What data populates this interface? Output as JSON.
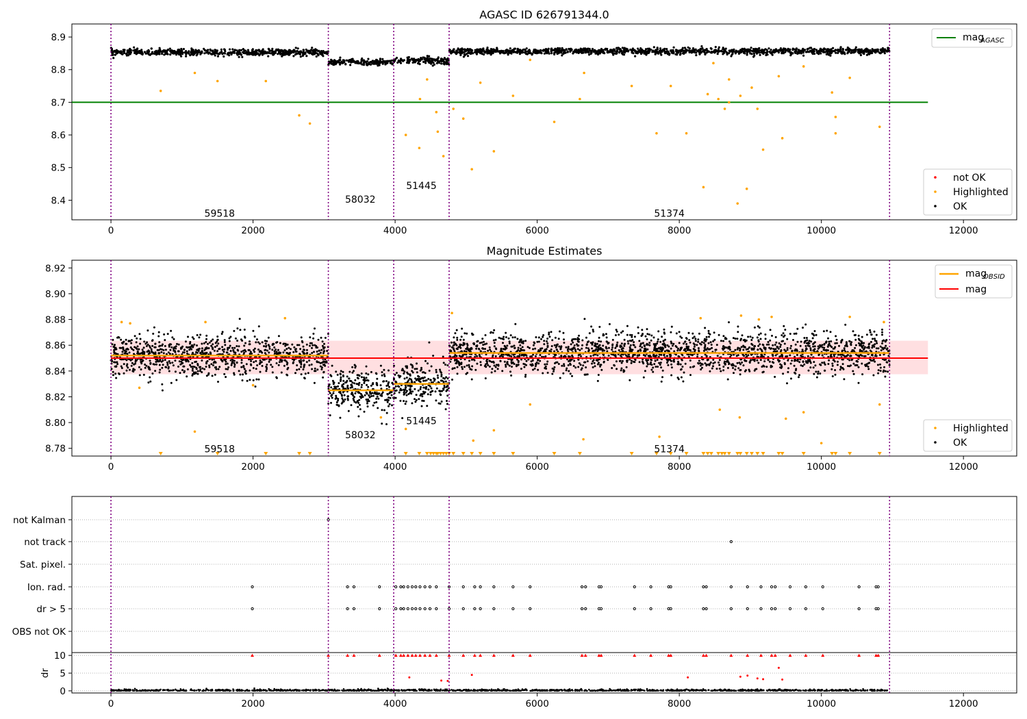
{
  "colors": {
    "ok": "#000000",
    "highlighted": "#ffa500",
    "not_ok": "#ff0000",
    "agasc_line": "#008000",
    "mean_line": "#ff0000",
    "band": "#ffc0c4",
    "obsid_line": "#ffa500",
    "boundary": "#800080",
    "grid": "#b0b0b0"
  },
  "chart_data": [
    {
      "type": "scatter",
      "title": "AGASC ID 626791344.0",
      "xlim": [
        -550,
        12750
      ],
      "ylim": [
        8.34,
        8.94
      ],
      "xticks": [
        0,
        2000,
        4000,
        6000,
        8000,
        10000,
        12000
      ],
      "xtick_labels": [
        "0",
        "2000",
        "4000",
        "6000",
        "8000",
        "10000",
        "12000"
      ],
      "yticks": [
        8.4,
        8.5,
        8.6,
        8.7,
        8.8,
        8.9
      ],
      "ytick_labels": [
        "8.4",
        "8.5",
        "8.6",
        "8.7",
        "8.8",
        "8.9"
      ],
      "hline": {
        "y": 8.7,
        "x_range": [
          0,
          11500
        ],
        "color": "#008000",
        "label": "mag",
        "label_sub": "AGASC"
      },
      "obsid_boundaries": [
        0,
        3060,
        3980,
        4760,
        10960
      ],
      "obsid_labels": [
        {
          "text": "59518",
          "x": 1530,
          "y": 8.36
        },
        {
          "text": "58032",
          "x": 3510,
          "y": 8.403
        },
        {
          "text": "51445",
          "x": 4370,
          "y": 8.445
        },
        {
          "text": "51374",
          "x": 7860,
          "y": 8.36
        }
      ],
      "ok_segments": [
        {
          "x_range": [
            0,
            3060
          ],
          "mean": 8.853,
          "spread": 0.009
        },
        {
          "x_range": [
            3060,
            3980
          ],
          "mean": 8.823,
          "spread": 0.008
        },
        {
          "x_range": [
            3980,
            4760
          ],
          "mean": 8.828,
          "spread": 0.01
        },
        {
          "x_range": [
            4760,
            10960
          ],
          "mean": 8.856,
          "spread": 0.009
        }
      ],
      "highlighted_points": [
        [
          700,
          8.735
        ],
        [
          1180,
          8.79
        ],
        [
          1500,
          8.765
        ],
        [
          2180,
          8.765
        ],
        [
          2650,
          8.66
        ],
        [
          2800,
          8.635
        ],
        [
          4150,
          8.6
        ],
        [
          4340,
          8.56
        ],
        [
          4580,
          8.67
        ],
        [
          4600,
          8.61
        ],
        [
          4680,
          8.535
        ],
        [
          4820,
          8.68
        ],
        [
          4960,
          8.65
        ],
        [
          5080,
          8.495
        ],
        [
          5200,
          8.76
        ],
        [
          5390,
          8.55
        ],
        [
          5660,
          8.72
        ],
        [
          6240,
          8.64
        ],
        [
          6600,
          8.71
        ],
        [
          6660,
          8.79
        ],
        [
          7330,
          8.75
        ],
        [
          7680,
          8.605
        ],
        [
          7880,
          8.75
        ],
        [
          8100,
          8.605
        ],
        [
          8340,
          8.44
        ],
        [
          8400,
          8.725
        ],
        [
          8550,
          8.71
        ],
        [
          8640,
          8.68
        ],
        [
          8700,
          8.7
        ],
        [
          8820,
          8.39
        ],
        [
          8860,
          8.72
        ],
        [
          8950,
          8.435
        ],
        [
          9020,
          8.745
        ],
        [
          9100,
          8.68
        ],
        [
          9180,
          8.555
        ],
        [
          9450,
          8.59
        ],
        [
          9400,
          8.78
        ],
        [
          9750,
          8.81
        ],
        [
          10150,
          8.73
        ],
        [
          10200,
          8.655
        ],
        [
          10200,
          8.605
        ],
        [
          10400,
          8.775
        ],
        [
          10820,
          8.625
        ],
        [
          4450,
          8.77
        ],
        [
          4350,
          8.71
        ],
        [
          5900,
          8.83
        ],
        [
          8480,
          8.82
        ],
        [
          8700,
          8.77
        ]
      ],
      "legend_line": [
        "mag"
      ],
      "legend_line_sub": [
        "AGASC"
      ],
      "legend_points": [
        "not OK",
        "Highlighted",
        "OK"
      ]
    },
    {
      "type": "scatter",
      "title": "Magnitude Estimates",
      "xlim": [
        -550,
        12750
      ],
      "ylim": [
        8.774,
        8.926
      ],
      "xticks": [
        0,
        2000,
        4000,
        6000,
        8000,
        10000,
        12000
      ],
      "xtick_labels": [
        "0",
        "2000",
        "4000",
        "6000",
        "8000",
        "10000",
        "12000"
      ],
      "yticks": [
        8.78,
        8.8,
        8.82,
        8.84,
        8.86,
        8.88,
        8.9,
        8.92
      ],
      "ytick_labels": [
        "8.78",
        "8.80",
        "8.82",
        "8.84",
        "8.86",
        "8.88",
        "8.90",
        "8.92"
      ],
      "mean_line": {
        "y": 8.85,
        "x_range": [
          0,
          11500
        ],
        "color": "#ff0000"
      },
      "band": {
        "y_range": [
          8.8375,
          8.8635
        ],
        "x_range": [
          0,
          11500
        ]
      },
      "obsid_means": [
        {
          "x_range": [
            0,
            3060
          ],
          "y": 8.852
        },
        {
          "x_range": [
            3060,
            3980
          ],
          "y": 8.825
        },
        {
          "x_range": [
            3980,
            4760
          ],
          "y": 8.83
        },
        {
          "x_range": [
            4760,
            10960
          ],
          "y": 8.854
        }
      ],
      "obsid_boundaries": [
        0,
        3060,
        3980,
        4760,
        10960
      ],
      "obsid_labels": [
        {
          "text": "59518",
          "x": 1530,
          "y": 8.7795
        },
        {
          "text": "58032",
          "x": 3510,
          "y": 8.7905
        },
        {
          "text": "51445",
          "x": 4370,
          "y": 8.8015
        },
        {
          "text": "51374",
          "x": 7860,
          "y": 8.7795
        }
      ],
      "highlighted_points": [
        [
          150,
          8.878
        ],
        [
          270,
          8.877
        ],
        [
          1180,
          8.793
        ],
        [
          1330,
          8.878
        ],
        [
          2450,
          8.881
        ],
        [
          3800,
          8.804
        ],
        [
          4150,
          8.795
        ],
        [
          4800,
          8.885
        ],
        [
          5100,
          8.786
        ],
        [
          5390,
          8.794
        ],
        [
          5900,
          8.814
        ],
        [
          6650,
          8.787
        ],
        [
          7720,
          8.789
        ],
        [
          8300,
          8.881
        ],
        [
          8570,
          8.81
        ],
        [
          8850,
          8.804
        ],
        [
          8870,
          8.883
        ],
        [
          9120,
          8.88
        ],
        [
          9300,
          8.882
        ],
        [
          9500,
          8.803
        ],
        [
          9750,
          8.808
        ],
        [
          10000,
          8.784
        ],
        [
          10400,
          8.882
        ],
        [
          10820,
          8.814
        ],
        [
          10880,
          8.878
        ],
        [
          400,
          8.827
        ],
        [
          2000,
          8.829
        ]
      ],
      "clipped_highlighted_x": [
        700,
        1500,
        2180,
        2650,
        2800,
        4150,
        4340,
        4450,
        4500,
        4540,
        4580,
        4600,
        4640,
        4680,
        4720,
        4760,
        4820,
        4960,
        5080,
        5200,
        5390,
        5660,
        6240,
        6600,
        7330,
        7680,
        7880,
        8100,
        8340,
        8400,
        8450,
        8550,
        8600,
        8640,
        8700,
        8820,
        8860,
        8950,
        9020,
        9100,
        9180,
        9450,
        9400,
        9750,
        10150,
        10200,
        10400,
        10820
      ],
      "legend_line": [
        "mag",
        "mag"
      ],
      "legend_line_sub": [
        "OBSID",
        ""
      ],
      "legend_points": [
        "Highlighted",
        "OK"
      ]
    },
    {
      "type": "scatter",
      "title": "",
      "xlim": [
        -550,
        12750
      ],
      "xticks": [
        0,
        2000,
        4000,
        6000,
        8000,
        10000,
        12000
      ],
      "xtick_labels": [
        "0",
        "2000",
        "4000",
        "6000",
        "8000",
        "10000",
        "12000"
      ],
      "flag_rows": [
        "not Kalman",
        "not track",
        "Sat. pixel.",
        "Ion. rad.",
        "dr > 5",
        "OBS not OK"
      ],
      "flag_points": {
        "not Kalman": [
          3060
        ],
        "not track": [
          8730
        ],
        "Sat. pixel.": [],
        "Ion. rad.": [
          1990,
          3330,
          3420,
          3780,
          4010,
          4080,
          4120,
          4180,
          4240,
          4290,
          4350,
          4420,
          4490,
          4580,
          4760,
          4960,
          5120,
          5200,
          5390,
          5660,
          5900,
          6630,
          6680,
          6870,
          6900,
          7370,
          7600,
          7850,
          7880,
          8340,
          8380,
          8730,
          8960,
          9150,
          9300,
          9350,
          9560,
          9780,
          10020,
          10530,
          10770,
          10800
        ],
        "dr > 5": [
          1990,
          3330,
          3420,
          3780,
          4010,
          4080,
          4120,
          4180,
          4240,
          4290,
          4350,
          4420,
          4490,
          4580,
          4760,
          4960,
          5120,
          5200,
          5390,
          5660,
          5900,
          6630,
          6680,
          6870,
          6900,
          7370,
          7600,
          7850,
          7880,
          8340,
          8380,
          8730,
          8960,
          9150,
          9300,
          9350,
          9560,
          9780,
          10020,
          10530,
          10770,
          10800
        ],
        "OBS not OK": []
      },
      "dr_ylim": [
        -0.6,
        10.8
      ],
      "dr_yticks": [
        0,
        5,
        10
      ],
      "dr_ytick_labels": [
        "0",
        "5",
        "10"
      ],
      "dr_ylabel": "dr",
      "dr_outliers": [
        [
          1990,
          10
        ],
        [
          3060,
          10
        ],
        [
          3330,
          10
        ],
        [
          3420,
          10
        ],
        [
          3780,
          10
        ],
        [
          4010,
          10
        ],
        [
          4080,
          10
        ],
        [
          4120,
          10
        ],
        [
          4180,
          10
        ],
        [
          4240,
          10
        ],
        [
          4290,
          10
        ],
        [
          4350,
          10
        ],
        [
          4420,
          10
        ],
        [
          4490,
          10
        ],
        [
          4580,
          10
        ],
        [
          4760,
          10
        ],
        [
          4960,
          10
        ],
        [
          5120,
          10
        ],
        [
          5200,
          10
        ],
        [
          5390,
          10
        ],
        [
          5660,
          10
        ],
        [
          5900,
          10
        ],
        [
          6630,
          10
        ],
        [
          6680,
          10
        ],
        [
          6870,
          10
        ],
        [
          6900,
          10
        ],
        [
          7370,
          10
        ],
        [
          7600,
          10
        ],
        [
          7850,
          10
        ],
        [
          7880,
          10
        ],
        [
          8340,
          10
        ],
        [
          8380,
          10
        ],
        [
          8730,
          10
        ],
        [
          8960,
          10
        ],
        [
          9150,
          10
        ],
        [
          9300,
          10
        ],
        [
          9350,
          10
        ],
        [
          9560,
          10
        ],
        [
          9780,
          10
        ],
        [
          10020,
          10
        ],
        [
          10530,
          10
        ],
        [
          10770,
          10
        ],
        [
          10800,
          10
        ],
        [
          4200,
          3.8
        ],
        [
          5080,
          4.5
        ],
        [
          8120,
          3.8
        ],
        [
          8860,
          4.0
        ],
        [
          8960,
          4.3
        ],
        [
          9100,
          3.5
        ],
        [
          9180,
          3.3
        ],
        [
          9400,
          6.5
        ],
        [
          9450,
          3.2
        ],
        [
          4650,
          2.9
        ],
        [
          4740,
          2.8
        ]
      ],
      "dr_ok_range": [
        0,
        0.6
      ]
    }
  ]
}
